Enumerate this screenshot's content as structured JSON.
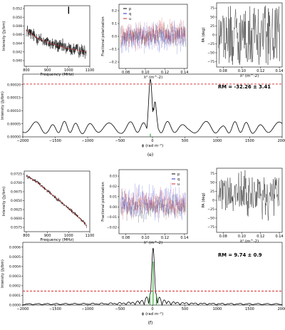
{
  "panels": [
    {
      "caption": "(e)",
      "rm_label": "RM = -32.26 ± 3.41",
      "spectrum": {
        "xlabel": "Frequency (MHz)",
        "ylabel": "Intensity (Jy/bm)",
        "xticks": [
          "800",
          "900",
          "1000",
          "1100"
        ],
        "yticks": [
          "0.040",
          "0.042",
          "0.044",
          "0.046",
          "0.048",
          "0.050",
          "0.052"
        ]
      },
      "polarization": {
        "xlabel": "λ² (m^-2)",
        "ylabel": "Fractional polarization",
        "xticks": [
          "0.08",
          "0.10",
          "0.12",
          "0.14"
        ],
        "yticks": [
          "−0.2",
          "−0.1",
          "0.0",
          "0.1",
          "0.2"
        ],
        "legend": [
          "p",
          "q",
          "u"
        ]
      },
      "angle": {
        "xlabel": "λ² (m^-2)",
        "ylabel": "PA (deg)",
        "xticks": [
          "0.08",
          "0.10",
          "0.12",
          "0.14"
        ],
        "yticks": [
          "75",
          "50",
          "25",
          "0",
          "−25",
          "−50",
          "−75"
        ]
      },
      "faraday": {
        "xlabel": "ϕ (rad m⁻²)",
        "ylabel": "Intensity (Jy/bm)",
        "xticks": [
          "−2000",
          "−1500",
          "−1000",
          "−500",
          "0",
          "500",
          "1000",
          "1500",
          "2000"
        ],
        "yticks": [
          "0.00000",
          "0.00005",
          "0.00010",
          "0.00015",
          "0.00020"
        ]
      }
    },
    {
      "caption": "(f)",
      "rm_label": "RM = 9.74 ± 0.9",
      "spectrum": {
        "xlabel": "Frequency (MHz)",
        "ylabel": "Intensity (Jy/bm)",
        "xticks": [
          "800",
          "900",
          "1000",
          "1100"
        ],
        "yticks": [
          "0.0575",
          "0.0600",
          "0.0625",
          "0.0650",
          "0.0675",
          "0.0700",
          "0.0725"
        ]
      },
      "polarization": {
        "xlabel": "λ² (m^-2)",
        "ylabel": "Fractional polarization",
        "xticks": [
          "0.08",
          "0.10",
          "0.12",
          "0.14"
        ],
        "yticks": [
          "−0.02",
          "−0.01",
          "0.00",
          "0.01",
          "0.02",
          "0.03"
        ],
        "legend": [
          "p",
          "q",
          "u"
        ]
      },
      "angle": {
        "xlabel": "λ² (m^-2)",
        "ylabel": "PA (deg)",
        "xticks": [
          "0.08",
          "0.10",
          "0.12",
          "0.14"
        ],
        "yticks": [
          "75",
          "50",
          "25",
          "0",
          "−25",
          "−50",
          "−75"
        ]
      },
      "faraday": {
        "xlabel": "ϕ (rad m⁻²)",
        "ylabel": "Intensity (Jy/bm)",
        "xticks": [
          "−2000",
          "−1500",
          "−1000",
          "−500",
          "0",
          "500",
          "1000",
          "1500",
          "2000"
        ],
        "yticks": [
          "0.0000",
          "0.0001",
          "0.0002",
          "0.0003",
          "0.0004",
          "0.0005",
          "0.0006"
        ]
      }
    }
  ],
  "colors": {
    "black": "#000000",
    "red": "#d62728",
    "blue": "#1f2bd6",
    "green": "#2ca02c"
  },
  "chart_data": [
    {
      "type": "line",
      "panel": "(e)",
      "name_hint": "Stokes I spectrum",
      "xlabel": "Frequency (MHz)",
      "ylabel": "Intensity (Jy/bm)",
      "xlim": [
        790,
        1100
      ],
      "ylim": [
        0.0395,
        0.0522
      ],
      "x": [
        800,
        850,
        900,
        950,
        1000,
        1050,
        1085
      ],
      "y": [
        0.047,
        0.0455,
        0.0445,
        0.0438,
        0.0432,
        0.0428,
        0.0425
      ]
    },
    {
      "type": "scatter",
      "panel": "(e)",
      "xlabel": "λ² (m^-2)",
      "ylabel": "Fractional polarization",
      "xlim": [
        0.073,
        0.143
      ],
      "ylim": [
        -0.25,
        0.25
      ],
      "series": [
        {
          "name": "p"
        },
        {
          "name": "q"
        },
        {
          "name": "u"
        }
      ]
    },
    {
      "type": "line",
      "panel": "(e)",
      "xlabel": "λ² (m^-2)",
      "ylabel": "PA (deg)",
      "xlim": [
        0.073,
        0.143
      ],
      "ylim": [
        -90,
        90
      ]
    },
    {
      "type": "line",
      "panel": "(e)",
      "xlabel": "ϕ (rad m⁻²)",
      "ylabel": "Intensity (Jy/bm)",
      "xlim": [
        -2000,
        2000
      ],
      "ylim": [
        0,
        0.00024
      ],
      "threshold": 0.000202,
      "peak_x": -32.26,
      "x": [
        -2000,
        -1500,
        -1000,
        -500,
        -200,
        -100,
        -32,
        50,
        100,
        200,
        500,
        1000,
        1500,
        2000
      ],
      "y": [
        3e-05,
        3e-05,
        4e-05,
        3.5e-05,
        4e-05,
        9e-05,
        0.00022,
        0.00013,
        6e-05,
        3.5e-05,
        4e-05,
        3e-05,
        4e-05,
        3e-05
      ]
    },
    {
      "type": "line",
      "panel": "(f)",
      "xlabel": "Frequency (MHz)",
      "ylabel": "Intensity (Jy/bm)",
      "xlim": [
        790,
        1100
      ],
      "ylim": [
        0.0565,
        0.0735
      ],
      "x": [
        800,
        850,
        900,
        950,
        1000,
        1050,
        1085
      ],
      "y": [
        0.0722,
        0.0705,
        0.068,
        0.0655,
        0.063,
        0.0605,
        0.0582
      ]
    },
    {
      "type": "scatter",
      "panel": "(f)",
      "xlabel": "λ² (m^-2)",
      "ylabel": "Fractional polarization",
      "xlim": [
        0.073,
        0.143
      ],
      "ylim": [
        -0.025,
        0.035
      ],
      "series": [
        {
          "name": "p"
        },
        {
          "name": "q"
        },
        {
          "name": "u"
        }
      ]
    },
    {
      "type": "line",
      "panel": "(f)",
      "xlabel": "λ² (m^-2)",
      "ylabel": "PA (deg)",
      "xlim": [
        0.073,
        0.143
      ],
      "ylim": [
        -90,
        90
      ]
    },
    {
      "type": "line",
      "panel": "(f)",
      "xlabel": "ϕ (rad m⁻²)",
      "ylabel": "Intensity (Jy/bm)",
      "xlim": [
        -2000,
        2000
      ],
      "ylim": [
        0,
        0.00065
      ],
      "threshold": 0.000145,
      "peak_x": 9.74,
      "x": [
        -2000,
        -1000,
        -500,
        -200,
        -100,
        -50,
        0,
        10,
        50,
        100,
        200,
        500,
        1000,
        2000
      ],
      "y": [
        2e-05,
        3e-05,
        6e-05,
        0.0001,
        0.00015,
        0.0003,
        0.00045,
        0.00059,
        0.00035,
        0.00015,
        0.0001,
        6e-05,
        3e-05,
        2e-05
      ]
    }
  ]
}
